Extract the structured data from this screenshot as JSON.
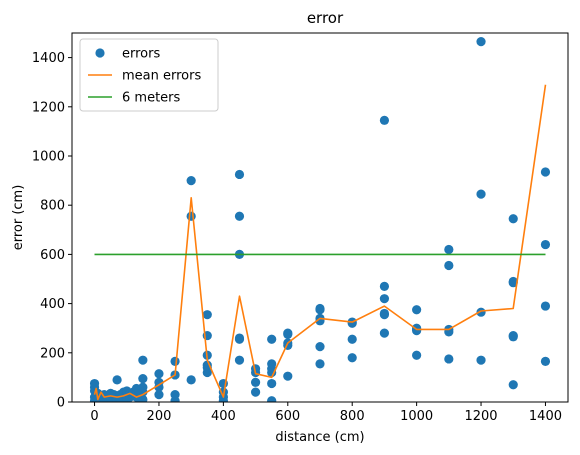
{
  "chart_data": {
    "type": "scatter",
    "title": "error",
    "xlabel": "distance (cm)",
    "ylabel": "error (cm)",
    "xlim": [
      -70,
      1470
    ],
    "ylim": [
      0,
      1500
    ],
    "xticks": [
      0,
      200,
      400,
      600,
      800,
      1000,
      1200,
      1400
    ],
    "yticks": [
      0,
      200,
      400,
      600,
      800,
      1000,
      1200,
      1400
    ],
    "grid": false,
    "legend_position": "top-left",
    "series": [
      {
        "name": "errors",
        "kind": "scatter",
        "color": "#1f77b4",
        "points": [
          [
            0,
            5
          ],
          [
            0,
            20
          ],
          [
            0,
            45
          ],
          [
            0,
            60
          ],
          [
            0,
            75
          ],
          [
            10,
            10
          ],
          [
            10,
            35
          ],
          [
            20,
            10
          ],
          [
            20,
            25
          ],
          [
            30,
            15
          ],
          [
            30,
            30
          ],
          [
            40,
            10
          ],
          [
            40,
            25
          ],
          [
            50,
            15
          ],
          [
            50,
            35
          ],
          [
            60,
            20
          ],
          [
            60,
            30
          ],
          [
            70,
            10
          ],
          [
            70,
            25
          ],
          [
            70,
            90
          ],
          [
            80,
            15
          ],
          [
            80,
            30
          ],
          [
            90,
            20
          ],
          [
            90,
            40
          ],
          [
            100,
            15
          ],
          [
            100,
            30
          ],
          [
            100,
            45
          ],
          [
            110,
            20
          ],
          [
            110,
            35
          ],
          [
            120,
            25
          ],
          [
            120,
            40
          ],
          [
            130,
            20
          ],
          [
            130,
            35
          ],
          [
            130,
            55
          ],
          [
            140,
            15
          ],
          [
            140,
            30
          ],
          [
            150,
            10
          ],
          [
            150,
            40
          ],
          [
            150,
            60
          ],
          [
            150,
            95
          ],
          [
            150,
            170
          ],
          [
            200,
            30
          ],
          [
            200,
            60
          ],
          [
            200,
            80
          ],
          [
            200,
            115
          ],
          [
            250,
            5
          ],
          [
            250,
            30
          ],
          [
            250,
            110
          ],
          [
            250,
            165
          ],
          [
            300,
            90
          ],
          [
            300,
            755
          ],
          [
            300,
            900
          ],
          [
            350,
            120
          ],
          [
            350,
            140
          ],
          [
            350,
            150
          ],
          [
            350,
            190
          ],
          [
            350,
            270
          ],
          [
            350,
            355
          ],
          [
            400,
            5
          ],
          [
            400,
            20
          ],
          [
            400,
            40
          ],
          [
            400,
            75
          ],
          [
            450,
            170
          ],
          [
            450,
            255
          ],
          [
            450,
            260
          ],
          [
            450,
            600
          ],
          [
            450,
            755
          ],
          [
            450,
            925
          ],
          [
            500,
            40
          ],
          [
            500,
            80
          ],
          [
            500,
            120
          ],
          [
            500,
            135
          ],
          [
            550,
            5
          ],
          [
            550,
            75
          ],
          [
            550,
            120
          ],
          [
            550,
            135
          ],
          [
            550,
            155
          ],
          [
            550,
            255
          ],
          [
            600,
            105
          ],
          [
            600,
            230
          ],
          [
            600,
            240
          ],
          [
            600,
            275
          ],
          [
            600,
            280
          ],
          [
            700,
            155
          ],
          [
            700,
            225
          ],
          [
            700,
            330
          ],
          [
            700,
            340
          ],
          [
            700,
            375
          ],
          [
            700,
            380
          ],
          [
            800,
            180
          ],
          [
            800,
            255
          ],
          [
            800,
            320
          ],
          [
            800,
            325
          ],
          [
            900,
            280
          ],
          [
            900,
            355
          ],
          [
            900,
            360
          ],
          [
            900,
            420
          ],
          [
            900,
            470
          ],
          [
            900,
            1145
          ],
          [
            1000,
            190
          ],
          [
            1000,
            290
          ],
          [
            1000,
            295
          ],
          [
            1000,
            300
          ],
          [
            1000,
            375
          ],
          [
            1100,
            175
          ],
          [
            1100,
            285
          ],
          [
            1100,
            295
          ],
          [
            1100,
            555
          ],
          [
            1100,
            620
          ],
          [
            1200,
            170
          ],
          [
            1200,
            365
          ],
          [
            1200,
            845
          ],
          [
            1200,
            1465
          ],
          [
            1300,
            70
          ],
          [
            1300,
            265
          ],
          [
            1300,
            270
          ],
          [
            1300,
            485
          ],
          [
            1300,
            490
          ],
          [
            1300,
            745
          ],
          [
            1400,
            165
          ],
          [
            1400,
            390
          ],
          [
            1400,
            640
          ],
          [
            1400,
            935
          ]
        ]
      },
      {
        "name": "mean errors",
        "kind": "line",
        "color": "#ff7f0e",
        "points": [
          [
            0,
            30
          ],
          [
            5,
            55
          ],
          [
            10,
            10
          ],
          [
            20,
            40
          ],
          [
            30,
            20
          ],
          [
            50,
            25
          ],
          [
            70,
            20
          ],
          [
            90,
            25
          ],
          [
            110,
            35
          ],
          [
            130,
            20
          ],
          [
            150,
            30
          ],
          [
            200,
            70
          ],
          [
            250,
            110
          ],
          [
            300,
            830
          ],
          [
            350,
            170
          ],
          [
            400,
            20
          ],
          [
            450,
            430
          ],
          [
            500,
            115
          ],
          [
            550,
            100
          ],
          [
            600,
            240
          ],
          [
            700,
            340
          ],
          [
            800,
            325
          ],
          [
            900,
            390
          ],
          [
            1000,
            295
          ],
          [
            1100,
            295
          ],
          [
            1200,
            370
          ],
          [
            1300,
            380
          ],
          [
            1400,
            1290
          ]
        ]
      },
      {
        "name": "6 meters",
        "kind": "line",
        "color": "#2ca02c",
        "points": [
          [
            0,
            600
          ],
          [
            1400,
            600
          ]
        ]
      }
    ]
  }
}
